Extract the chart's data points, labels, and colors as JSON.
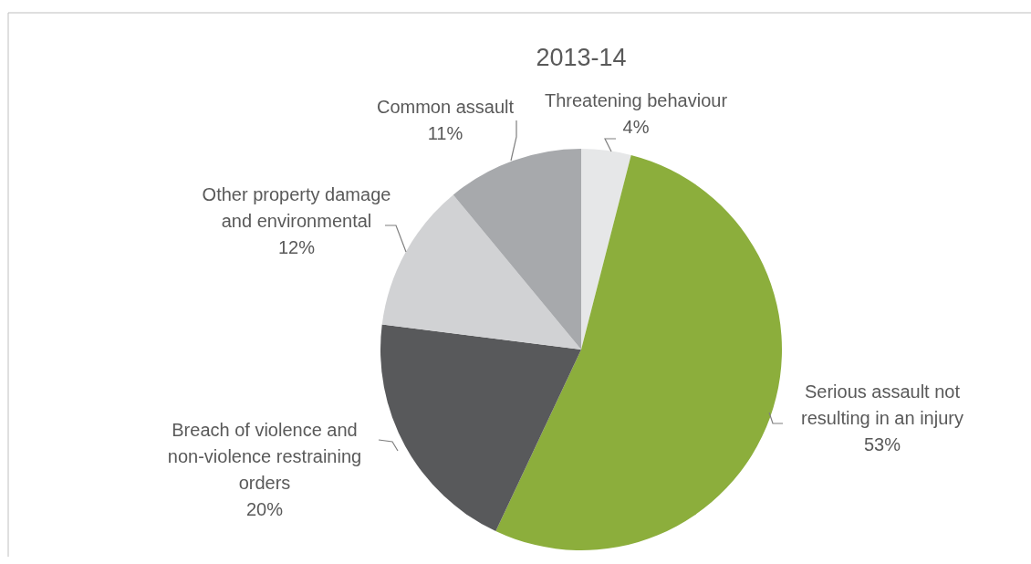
{
  "chart_data": {
    "type": "pie",
    "title": "2013-14",
    "categories": [
      "Threatening behaviour",
      "Serious assault not resulting in an injury",
      "Breach of violence and non-violence restraining orders",
      "Other property damage and environmental",
      "Common assault"
    ],
    "values": [
      4,
      53,
      20,
      12,
      11
    ],
    "colors": [
      "#e6e7e8",
      "#8cae3c",
      "#58595b",
      "#d1d2d4",
      "#a7a9ac"
    ],
    "value_labels": [
      "4%",
      "53%",
      "20%",
      "12%",
      "11%"
    ]
  }
}
